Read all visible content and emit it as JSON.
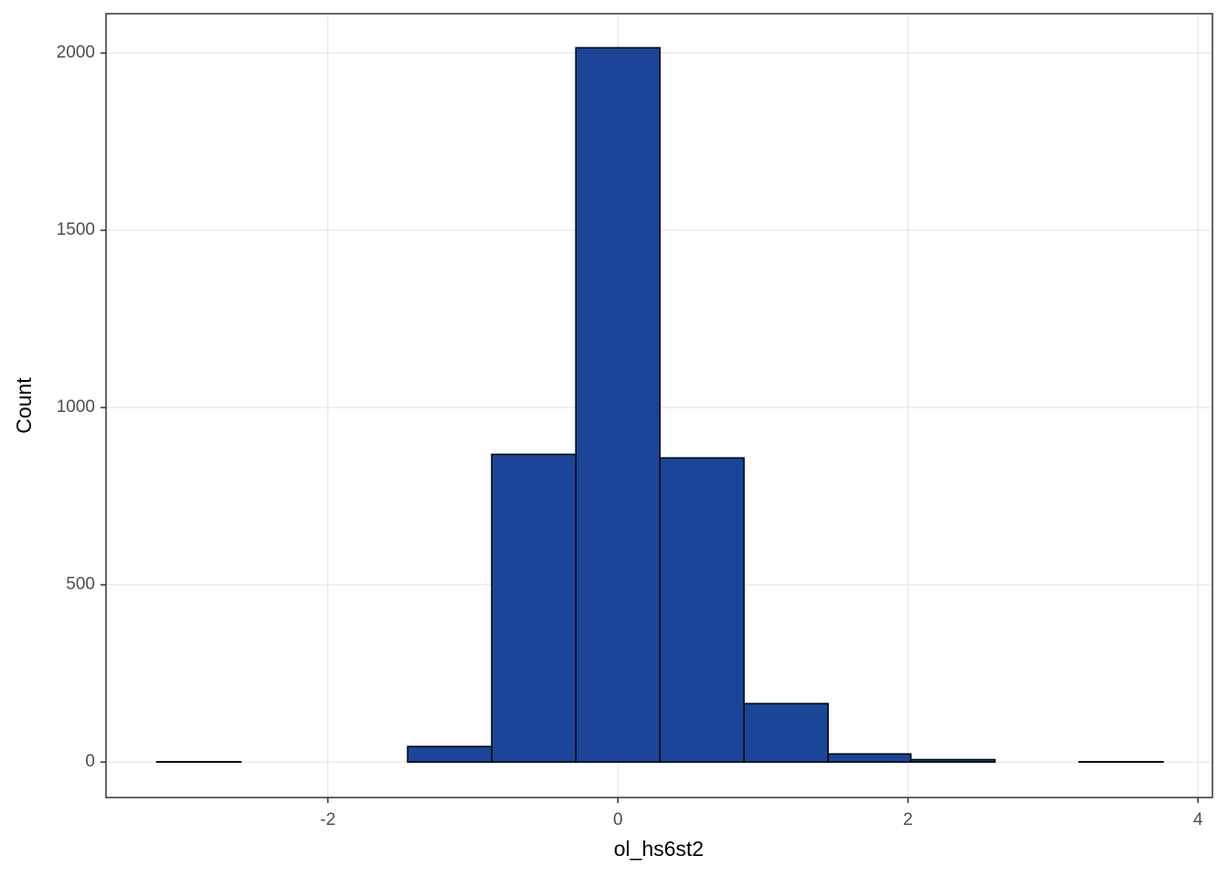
{
  "chart_data": {
    "type": "histogram",
    "x_label": "ol_hs6st2",
    "y_label": "Count",
    "bins": [
      -3.18,
      -2.6,
      -2.02,
      -1.45,
      -0.87,
      -0.29,
      0.29,
      0.87,
      1.45,
      2.02,
      2.6,
      3.18,
      3.76
    ],
    "values": [
      1,
      0,
      0,
      44,
      868,
      2015,
      858,
      165,
      23,
      7,
      0,
      1
    ],
    "color": "#1a4599",
    "edge_color": "#000000",
    "xlim": [
      -3.53,
      4.1
    ],
    "xticks": [
      -2,
      0,
      2,
      4
    ],
    "ylim": [
      -100,
      2111
    ],
    "yticks": [
      0,
      500,
      1000,
      1500,
      2000
    ],
    "grid": true
  }
}
